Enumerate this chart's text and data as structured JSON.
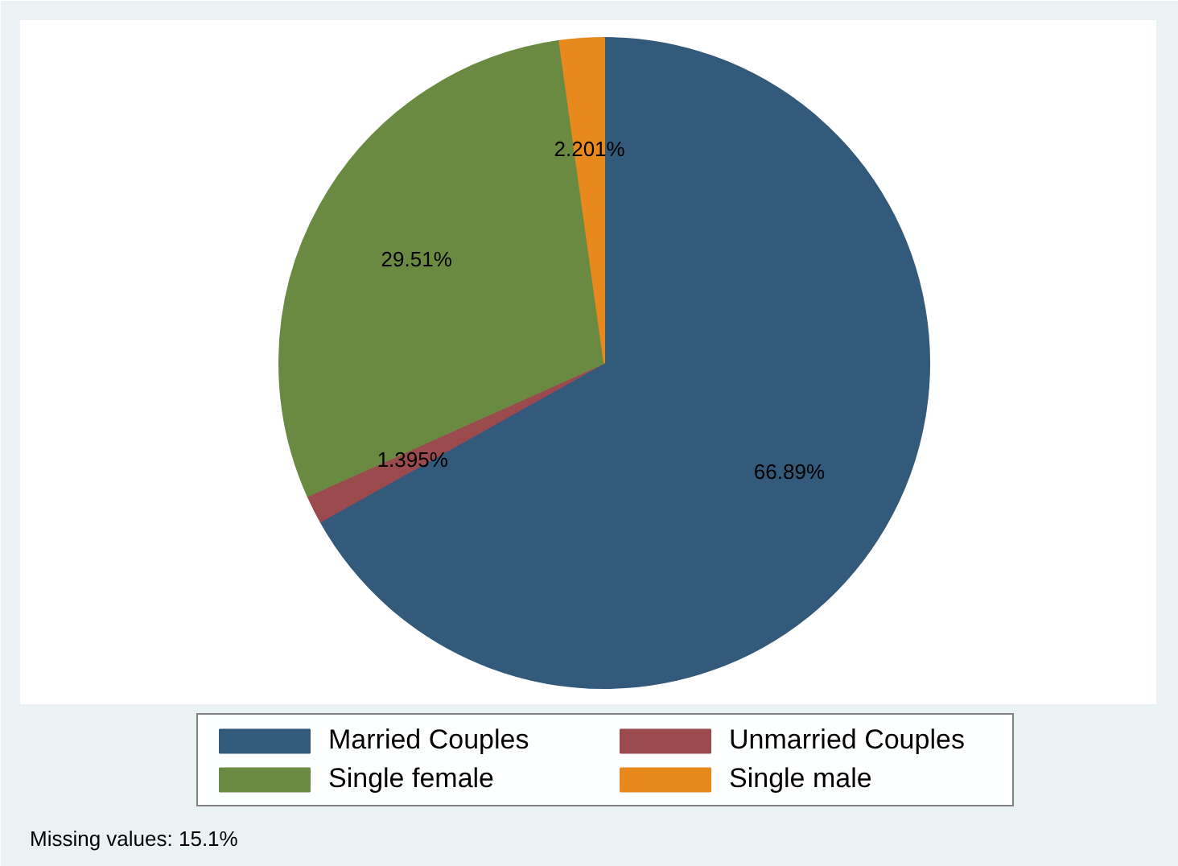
{
  "chart_data": {
    "type": "pie",
    "categories": [
      "Married Couples",
      "Unmarried Couples",
      "Single female",
      "Single male"
    ],
    "values": [
      66.89,
      1.395,
      29.51,
      2.201
    ],
    "colors": [
      "#335a7a",
      "#9b4a4e",
      "#6a8a42",
      "#e8891e"
    ],
    "value_labels": [
      "66.89%",
      "1.395%",
      "29.51%",
      "2.201%"
    ],
    "legend": "bottom",
    "annotations": [
      "Missing values: 15.1%"
    ]
  }
}
